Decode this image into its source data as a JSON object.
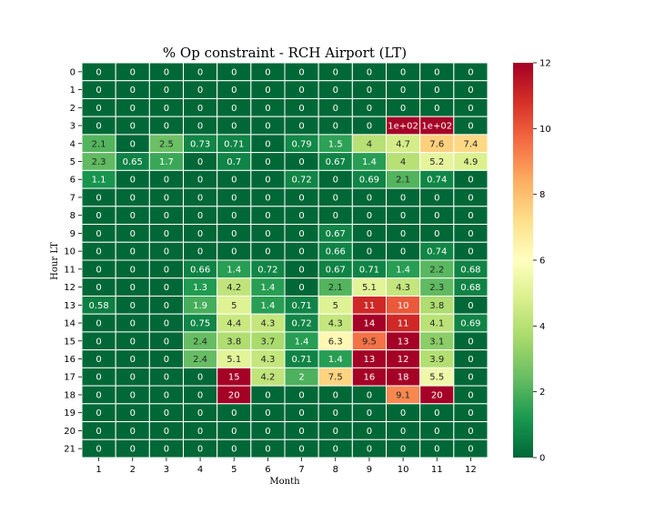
{
  "chart_data": {
    "type": "heatmap",
    "title": "% Op constraint - RCH Airport (LT)",
    "xlabel": "Month",
    "ylabel": "Hour LT",
    "x_categories": [
      "1",
      "2",
      "3",
      "4",
      "5",
      "6",
      "7",
      "8",
      "9",
      "10",
      "11",
      "12"
    ],
    "y_categories": [
      "0",
      "1",
      "2",
      "3",
      "4",
      "5",
      "6",
      "7",
      "8",
      "9",
      "10",
      "11",
      "12",
      "13",
      "14",
      "15",
      "16",
      "17",
      "18",
      "19",
      "20",
      "21"
    ],
    "values": [
      [
        0,
        0,
        0,
        0,
        0,
        0,
        0,
        0,
        0,
        0,
        0,
        0
      ],
      [
        0,
        0,
        0,
        0,
        0,
        0,
        0,
        0,
        0,
        0,
        0,
        0
      ],
      [
        0,
        0,
        0,
        0,
        0,
        0,
        0,
        0,
        0,
        0,
        0,
        0
      ],
      [
        0,
        0,
        0,
        0,
        0,
        0,
        0,
        0,
        0,
        100,
        100,
        0
      ],
      [
        2.1,
        0,
        2.5,
        0.73,
        0.71,
        0,
        0.79,
        1.5,
        4,
        4.7,
        7.6,
        7.4
      ],
      [
        2.3,
        0.65,
        1.7,
        0,
        0.7,
        0,
        0,
        0.67,
        1.4,
        4,
        5.2,
        4.9
      ],
      [
        1.1,
        0,
        0,
        0,
        0,
        0,
        0.72,
        0,
        0.69,
        2.1,
        0.74,
        0
      ],
      [
        0,
        0,
        0,
        0,
        0,
        0,
        0,
        0,
        0,
        0,
        0,
        0
      ],
      [
        0,
        0,
        0,
        0,
        0,
        0,
        0,
        0,
        0,
        0,
        0,
        0
      ],
      [
        0,
        0,
        0,
        0,
        0,
        0,
        0,
        0.67,
        0,
        0,
        0,
        0
      ],
      [
        0,
        0,
        0,
        0,
        0,
        0,
        0,
        0.66,
        0,
        0,
        0.74,
        0
      ],
      [
        0,
        0,
        0,
        0.66,
        1.4,
        0.72,
        0,
        0.67,
        0.71,
        1.4,
        2.2,
        0.68
      ],
      [
        0,
        0,
        0,
        1.3,
        4.2,
        1.4,
        0,
        2.1,
        5.1,
        4.3,
        2.3,
        0.68
      ],
      [
        0.58,
        0,
        0,
        1.9,
        5,
        1.4,
        0.71,
        5,
        11,
        10,
        3.8,
        0
      ],
      [
        0,
        0,
        0,
        0.75,
        4.4,
        4.3,
        0.72,
        4.3,
        14,
        11,
        4.1,
        0.69
      ],
      [
        0,
        0,
        0,
        2.4,
        3.8,
        3.7,
        1.4,
        6.3,
        9.5,
        13,
        3.1,
        0
      ],
      [
        0,
        0,
        0,
        2.4,
        5.1,
        4.3,
        0.71,
        1.4,
        13,
        12,
        3.9,
        0
      ],
      [
        0,
        0,
        0,
        0,
        15,
        4.2,
        2,
        7.5,
        16,
        18,
        5.5,
        0
      ],
      [
        0,
        0,
        0,
        0,
        20,
        0,
        0,
        0,
        0,
        9.1,
        20,
        0
      ],
      [
        0,
        0,
        0,
        0,
        0,
        0,
        0,
        0,
        0,
        0,
        0,
        0
      ],
      [
        0,
        0,
        0,
        0,
        0,
        0,
        0,
        0,
        0,
        0,
        0,
        0
      ],
      [
        0,
        0,
        0,
        0,
        0,
        0,
        0,
        0,
        0,
        0,
        0,
        0
      ]
    ],
    "cell_labels": [
      [
        "0",
        "0",
        "0",
        "0",
        "0",
        "0",
        "0",
        "0",
        "0",
        "0",
        "0",
        "0"
      ],
      [
        "0",
        "0",
        "0",
        "0",
        "0",
        "0",
        "0",
        "0",
        "0",
        "0",
        "0",
        "0"
      ],
      [
        "0",
        "0",
        "0",
        "0",
        "0",
        "0",
        "0",
        "0",
        "0",
        "0",
        "0",
        "0"
      ],
      [
        "0",
        "0",
        "0",
        "0",
        "0",
        "0",
        "0",
        "0",
        "0",
        "1e+02",
        "1e+02",
        "0"
      ],
      [
        "2.1",
        "0",
        "2.5",
        "0.73",
        "0.71",
        "0",
        "0.79",
        "1.5",
        "4",
        "4.7",
        "7.6",
        "7.4"
      ],
      [
        "2.3",
        "0.65",
        "1.7",
        "0",
        "0.7",
        "0",
        "0",
        "0.67",
        "1.4",
        "4",
        "5.2",
        "4.9"
      ],
      [
        "1.1",
        "0",
        "0",
        "0",
        "0",
        "0",
        "0.72",
        "0",
        "0.69",
        "2.1",
        "0.74",
        "0"
      ],
      [
        "0",
        "0",
        "0",
        "0",
        "0",
        "0",
        "0",
        "0",
        "0",
        "0",
        "0",
        "0"
      ],
      [
        "0",
        "0",
        "0",
        "0",
        "0",
        "0",
        "0",
        "0",
        "0",
        "0",
        "0",
        "0"
      ],
      [
        "0",
        "0",
        "0",
        "0",
        "0",
        "0",
        "0",
        "0.67",
        "0",
        "0",
        "0",
        "0"
      ],
      [
        "0",
        "0",
        "0",
        "0",
        "0",
        "0",
        "0",
        "0.66",
        "0",
        "0",
        "0.74",
        "0"
      ],
      [
        "0",
        "0",
        "0",
        "0.66",
        "1.4",
        "0.72",
        "0",
        "0.67",
        "0.71",
        "1.4",
        "2.2",
        "0.68"
      ],
      [
        "0",
        "0",
        "0",
        "1.3",
        "4.2",
        "1.4",
        "0",
        "2.1",
        "5.1",
        "4.3",
        "2.3",
        "0.68"
      ],
      [
        "0.58",
        "0",
        "0",
        "1.9",
        "5",
        "1.4",
        "0.71",
        "5",
        "11",
        "10",
        "3.8",
        "0"
      ],
      [
        "0",
        "0",
        "0",
        "0.75",
        "4.4",
        "4.3",
        "0.72",
        "4.3",
        "14",
        "11",
        "4.1",
        "0.69"
      ],
      [
        "0",
        "0",
        "0",
        "2.4",
        "3.8",
        "3.7",
        "1.4",
        "6.3",
        "9.5",
        "13",
        "3.1",
        "0"
      ],
      [
        "0",
        "0",
        "0",
        "2.4",
        "5.1",
        "4.3",
        "0.71",
        "1.4",
        "13",
        "12",
        "3.9",
        "0"
      ],
      [
        "0",
        "0",
        "0",
        "0",
        "15",
        "4.2",
        "2",
        "7.5",
        "16",
        "18",
        "5.5",
        "0"
      ],
      [
        "0",
        "0",
        "0",
        "0",
        "20",
        "0",
        "0",
        "0",
        "0",
        "9.1",
        "20",
        "0"
      ],
      [
        "0",
        "0",
        "0",
        "0",
        "0",
        "0",
        "0",
        "0",
        "0",
        "0",
        "0",
        "0"
      ],
      [
        "0",
        "0",
        "0",
        "0",
        "0",
        "0",
        "0",
        "0",
        "0",
        "0",
        "0",
        "0"
      ],
      [
        "0",
        "0",
        "0",
        "0",
        "0",
        "0",
        "0",
        "0",
        "0",
        "0",
        "0",
        "0"
      ]
    ],
    "colorscale": "RdYlGn_r",
    "vmin": 0,
    "vmax": 12,
    "colorbar_ticks": [
      "0",
      "2",
      "4",
      "6",
      "8",
      "10",
      "12"
    ],
    "grid": true
  }
}
